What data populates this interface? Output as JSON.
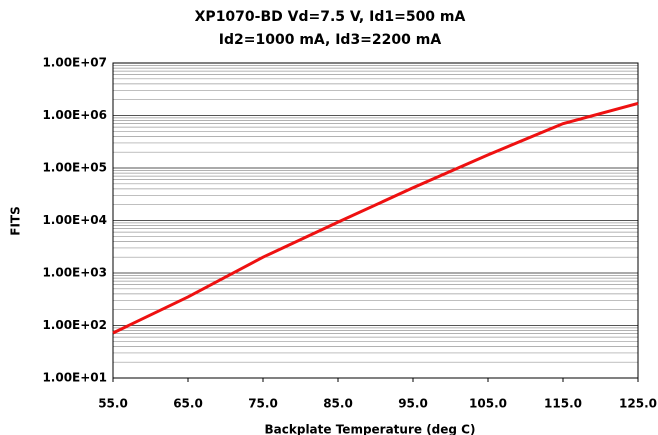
{
  "chart_data": {
    "type": "line",
    "title": [
      "XP1070-BD Vd=7.5 V, Id1=500 mA",
      "Id2=1000 mA, Id3=2200 mA"
    ],
    "x_label": "Backplate Temperature (deg C)",
    "y_label": "FITS",
    "log_y": true,
    "grid": true,
    "minor_grid": true,
    "x": [
      55,
      65,
      75,
      85,
      95,
      105,
      115,
      125
    ],
    "series": [
      {
        "color": "#ee1111",
        "values": [
          72,
          350,
          2000,
          9300,
          42000,
          178000,
          700000,
          1700000
        ]
      }
    ],
    "xlim": [
      55,
      125
    ],
    "xticks": [
      {
        "value": 55,
        "label": "55.0"
      },
      {
        "value": 65,
        "label": "65.0"
      },
      {
        "value": 75,
        "label": "75.0"
      },
      {
        "value": 85,
        "label": "85.0"
      },
      {
        "value": 95,
        "label": "95.0"
      },
      {
        "value": 105,
        "label": "105.0"
      },
      {
        "value": 115,
        "label": "115.0"
      },
      {
        "value": 125,
        "label": "125.0"
      }
    ],
    "ylim": [
      10,
      10000000
    ],
    "yticks": [
      {
        "value": 10,
        "label": "1.00E+01"
      },
      {
        "value": 100,
        "label": "1.00E+02"
      },
      {
        "value": 1000,
        "label": "1.00E+03"
      },
      {
        "value": 10000,
        "label": "1.00E+04"
      },
      {
        "value": 100000,
        "label": "1.00E+05"
      },
      {
        "value": 1000000,
        "label": "1.00E+06"
      },
      {
        "value": 10000000,
        "label": "1.00E+07"
      }
    ]
  }
}
